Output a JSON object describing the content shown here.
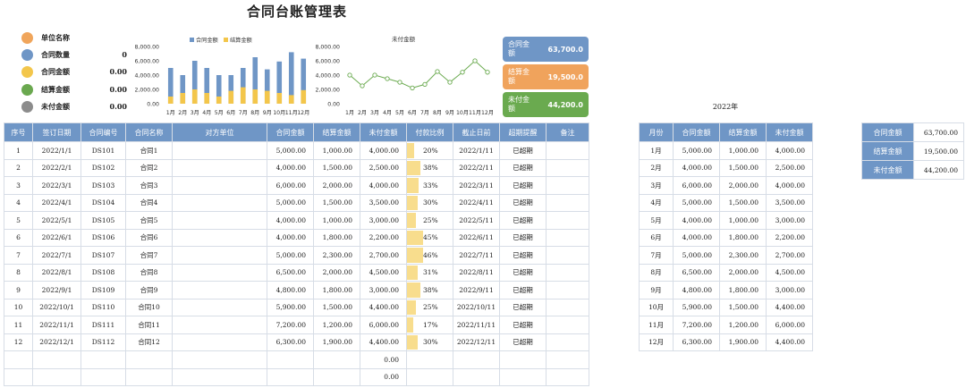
{
  "title": "合同台账管理表",
  "summary": [
    {
      "icon": "search-icon",
      "label": "单位名称",
      "value": "",
      "color": "#f0a55b"
    },
    {
      "icon": "handshake-icon",
      "label": "合同数量",
      "value": "0",
      "color": "#6f96c6"
    },
    {
      "icon": "pie-chart-icon",
      "label": "合同金额",
      "value": "0.00",
      "color": "#f3c64b"
    },
    {
      "icon": "pie-slice-icon",
      "label": "结算金额",
      "value": "0.00",
      "color": "#6aa84f"
    },
    {
      "icon": "clock-icon",
      "label": "未付金额",
      "value": "0.00",
      "color": "#8c8c8c"
    }
  ],
  "cards": [
    {
      "label": "合同金额",
      "value": "63,700.0",
      "color": "#6f96c6"
    },
    {
      "label": "结算金额",
      "value": "19,500.0",
      "color": "#f0a35c"
    },
    {
      "label": "未付金额",
      "value": "44,200.0",
      "color": "#6aaa4f"
    }
  ],
  "chart_data": [
    {
      "type": "bar",
      "categories": [
        "1月",
        "2月",
        "3月",
        "4月",
        "5月",
        "6月",
        "7月",
        "8月",
        "9月",
        "10月",
        "11月",
        "12月"
      ],
      "series": [
        {
          "name": "合同金额",
          "color": "#6f96c6",
          "values": [
            5000,
            4000,
            6000,
            5000,
            4000,
            4000,
            5000,
            6500,
            4800,
            5900,
            7200,
            6300
          ]
        },
        {
          "name": "结算金额",
          "color": "#f3c64b",
          "values": [
            1000,
            1500,
            2000,
            1500,
            1000,
            1800,
            2300,
            2000,
            1800,
            1500,
            1200,
            1900
          ]
        }
      ],
      "ytick_labels": [
        "0.00",
        "2,000.00",
        "4,000.00",
        "6,000.00",
        "8,000.00"
      ],
      "ylim": [
        0,
        8000
      ],
      "legend": "top"
    },
    {
      "type": "line",
      "title": "未付金额",
      "categories": [
        "1月",
        "2月",
        "3月",
        "4月",
        "5月",
        "6月",
        "7月",
        "8月",
        "9月",
        "10月",
        "11月",
        "12月"
      ],
      "series": [
        {
          "color": "#6aaa4f",
          "values": [
            4000,
            2500,
            4000,
            3500,
            3000,
            2200,
            2700,
            4500,
            3000,
            4400,
            6000,
            4400
          ]
        }
      ],
      "ytick_labels": [
        "0.00",
        "2,000.00",
        "4,000.00",
        "6,000.00",
        "8,000.00"
      ],
      "ylim": [
        0,
        8000
      ]
    }
  ],
  "main_table": {
    "headers": [
      "序号",
      "签订日期",
      "合同编号",
      "合同名称",
      "对方单位",
      "合同金额",
      "结算金额",
      "未付金额",
      "付款比例",
      "截止日前",
      "超期提醒",
      "备注"
    ],
    "rows": [
      [
        "1",
        "2022/1/1",
        "DS101",
        "合同1",
        "",
        "5,000.00",
        "1,000.00",
        "4,000.00",
        "20%",
        "2022/1/11",
        "已超期",
        ""
      ],
      [
        "2",
        "2022/2/1",
        "DS102",
        "合同2",
        "",
        "4,000.00",
        "1,500.00",
        "2,500.00",
        "38%",
        "2022/2/11",
        "已超期",
        ""
      ],
      [
        "3",
        "2022/3/1",
        "DS103",
        "合同3",
        "",
        "6,000.00",
        "2,000.00",
        "4,000.00",
        "33%",
        "2022/3/11",
        "已超期",
        ""
      ],
      [
        "4",
        "2022/4/1",
        "DS104",
        "合同4",
        "",
        "5,000.00",
        "1,500.00",
        "3,500.00",
        "30%",
        "2022/4/11",
        "已超期",
        ""
      ],
      [
        "5",
        "2022/5/1",
        "DS105",
        "合同5",
        "",
        "4,000.00",
        "1,000.00",
        "3,000.00",
        "25%",
        "2022/5/11",
        "已超期",
        ""
      ],
      [
        "6",
        "2022/6/1",
        "DS106",
        "合同6",
        "",
        "4,000.00",
        "1,800.00",
        "2,200.00",
        "45%",
        "2022/6/11",
        "已超期",
        ""
      ],
      [
        "7",
        "2022/7/1",
        "DS107",
        "合同7",
        "",
        "5,000.00",
        "2,300.00",
        "2,700.00",
        "46%",
        "2022/7/11",
        "已超期",
        ""
      ],
      [
        "8",
        "2022/8/1",
        "DS108",
        "合同8",
        "",
        "6,500.00",
        "2,000.00",
        "4,500.00",
        "31%",
        "2022/8/11",
        "已超期",
        ""
      ],
      [
        "9",
        "2022/9/1",
        "DS109",
        "合同9",
        "",
        "4,800.00",
        "1,800.00",
        "3,000.00",
        "38%",
        "2022/9/11",
        "已超期",
        ""
      ],
      [
        "10",
        "2022/10/1",
        "DS110",
        "合同10",
        "",
        "5,900.00",
        "1,500.00",
        "4,400.00",
        "25%",
        "2022/10/11",
        "已超期",
        ""
      ],
      [
        "11",
        "2022/11/1",
        "DS111",
        "合同11",
        "",
        "7,200.00",
        "1,200.00",
        "6,000.00",
        "17%",
        "2022/11/11",
        "已超期",
        ""
      ],
      [
        "12",
        "2022/12/1",
        "DS112",
        "合同12",
        "",
        "6,300.00",
        "1,900.00",
        "4,400.00",
        "30%",
        "2022/12/11",
        "已超期",
        ""
      ],
      [
        "",
        "",
        "",
        "",
        "",
        "",
        "",
        "0.00",
        "",
        "",
        "",
        ""
      ],
      [
        "",
        "",
        "",
        "",
        "",
        "",
        "",
        "0.00",
        "",
        "",
        "",
        ""
      ]
    ],
    "ratios": [
      0.2,
      0.38,
      0.33,
      0.3,
      0.25,
      0.45,
      0.46,
      0.31,
      0.38,
      0.25,
      0.17,
      0.3,
      0,
      0
    ]
  },
  "monthly_table": {
    "year_label": "2022年",
    "headers": [
      "月份",
      "合同金额",
      "结算金额",
      "未付金额"
    ],
    "rows": [
      [
        "1月",
        "5,000.00",
        "1,000.00",
        "4,000.00"
      ],
      [
        "2月",
        "4,000.00",
        "1,500.00",
        "2,500.00"
      ],
      [
        "3月",
        "6,000.00",
        "2,000.00",
        "4,000.00"
      ],
      [
        "4月",
        "5,000.00",
        "1,500.00",
        "3,500.00"
      ],
      [
        "5月",
        "4,000.00",
        "1,000.00",
        "3,000.00"
      ],
      [
        "6月",
        "4,000.00",
        "1,800.00",
        "2,200.00"
      ],
      [
        "7月",
        "5,000.00",
        "2,300.00",
        "2,700.00"
      ],
      [
        "8月",
        "6,500.00",
        "2,000.00",
        "4,500.00"
      ],
      [
        "9月",
        "4,800.00",
        "1,800.00",
        "3,000.00"
      ],
      [
        "10月",
        "5,900.00",
        "1,500.00",
        "4,400.00"
      ],
      [
        "11月",
        "7,200.00",
        "1,200.00",
        "6,000.00"
      ],
      [
        "12月",
        "6,300.00",
        "1,900.00",
        "4,400.00"
      ]
    ]
  },
  "totals_table": {
    "rows": [
      [
        "合同金额",
        "63,700.00"
      ],
      [
        "结算金额",
        "19,500.00"
      ],
      [
        "未付金额",
        "44,200.00"
      ]
    ]
  }
}
